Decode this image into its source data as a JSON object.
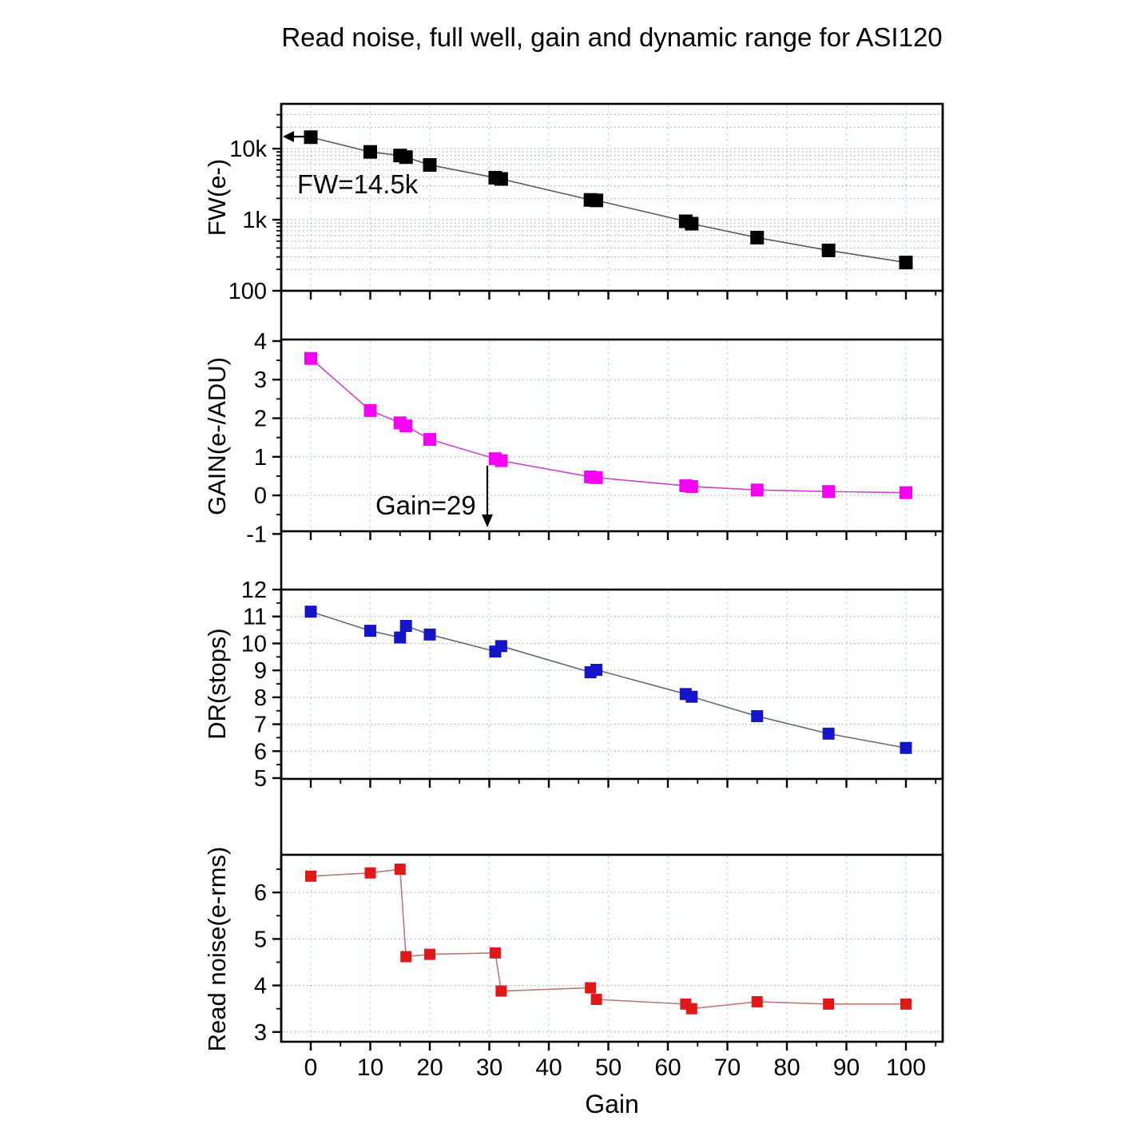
{
  "title": "Read noise, full well, gain and dynamic range for ASI120",
  "xlabel": "Gain",
  "style": {
    "background": "#ffffff",
    "axis_color": "#000000",
    "vertical_grid_color": "#a6dcdc",
    "horizontal_grid_color": "#9a9a9a"
  },
  "xaxis": {
    "label": "Gain",
    "tick_values": [
      0,
      10,
      20,
      30,
      40,
      50,
      60,
      70,
      80,
      90,
      100
    ],
    "tick_labels": [
      "0",
      "10",
      "20",
      "30",
      "40",
      "50",
      "60",
      "70",
      "80",
      "90",
      "100"
    ],
    "minor_tick_values": [
      5,
      15,
      25,
      35,
      45,
      55,
      65,
      75,
      85,
      95,
      105
    ]
  },
  "chart_data": [
    {
      "type": "line",
      "name": "fw",
      "ylabel": "FW(e-)",
      "yscale": "log",
      "ylim": [
        100,
        42700
      ],
      "annotation": "FW=14.5k",
      "color": "#000000",
      "line_color": "#5a5a5a",
      "marker": "square",
      "marker_size": 17,
      "x": [
        0,
        10,
        15,
        16,
        20,
        31,
        32,
        47,
        48,
        63,
        64,
        75,
        87,
        100
      ],
      "y": [
        14500,
        9000,
        8000,
        7600,
        5900,
        3900,
        3750,
        1900,
        1870,
        950,
        880,
        560,
        370,
        250
      ],
      "yticks": [
        {
          "v": 10000,
          "label": "10k"
        },
        {
          "v": 1000,
          "label": "1k"
        },
        {
          "v": 100,
          "label": "100"
        }
      ],
      "yticks_minor": [
        200,
        300,
        400,
        500,
        600,
        700,
        800,
        900,
        2000,
        3000,
        4000,
        5000,
        6000,
        7000,
        8000,
        9000,
        20000,
        30000
      ],
      "ygrid": [
        200,
        300,
        400,
        500,
        600,
        700,
        800,
        900,
        1000,
        2000,
        3000,
        4000,
        5000,
        6000,
        7000,
        8000,
        9000,
        10000,
        20000,
        30000
      ]
    },
    {
      "type": "line",
      "name": "gain",
      "ylabel": "GAIN(e-/ADU)",
      "yscale": "linear",
      "ylim": [
        -0.93,
        4.04
      ],
      "annotation": "Gain=29",
      "color": "#f500f5",
      "line_color": "#cc44cc",
      "marker": "square",
      "marker_size": 16,
      "x": [
        0,
        10,
        15,
        16,
        20,
        31,
        32,
        47,
        48,
        63,
        64,
        75,
        87,
        100
      ],
      "y": [
        3.55,
        2.2,
        1.88,
        1.8,
        1.45,
        0.95,
        0.9,
        0.48,
        0.46,
        0.25,
        0.23,
        0.14,
        0.1,
        0.07
      ],
      "yticks": [
        {
          "v": 4,
          "label": "4"
        },
        {
          "v": 3,
          "label": "3"
        },
        {
          "v": 2,
          "label": "2"
        },
        {
          "v": 1,
          "label": "1"
        },
        {
          "v": 0,
          "label": "0"
        },
        {
          "v": -1,
          "label": "-1"
        }
      ],
      "yticks_minor": [
        -0.5,
        0.5,
        1.5,
        2.5,
        3.5
      ],
      "ygrid": [
        0,
        1,
        2,
        3
      ]
    },
    {
      "type": "line",
      "name": "dr",
      "ylabel": "DR(stops)",
      "yscale": "linear",
      "ylim": [
        4.97,
        12
      ],
      "annotation": "",
      "color": "#1414c8",
      "line_color": "#5f6b7a",
      "marker": "square",
      "marker_size": 15,
      "x": [
        0,
        10,
        15,
        16,
        20,
        31,
        32,
        47,
        48,
        63,
        64,
        75,
        87,
        100
      ],
      "y": [
        11.18,
        10.47,
        10.22,
        10.65,
        10.33,
        9.7,
        9.9,
        8.93,
        9.02,
        8.12,
        8.02,
        7.3,
        6.65,
        6.12
      ],
      "yticks": [
        {
          "v": 12,
          "label": "12"
        },
        {
          "v": 11,
          "label": "11"
        },
        {
          "v": 10,
          "label": "10"
        },
        {
          "v": 9,
          "label": "9"
        },
        {
          "v": 8,
          "label": "8"
        },
        {
          "v": 7,
          "label": "7"
        },
        {
          "v": 6,
          "label": "6"
        },
        {
          "v": 5,
          "label": "5"
        }
      ],
      "yticks_minor": [
        5.5,
        6.5,
        7.5,
        8.5,
        9.5,
        10.5,
        11.5
      ],
      "ygrid": [
        6,
        7,
        8,
        9,
        10,
        11
      ]
    },
    {
      "type": "line",
      "name": "read-noise",
      "ylabel": "Read noise(e-rms)",
      "yscale": "linear",
      "ylim": [
        2.79,
        6.81
      ],
      "annotation": "",
      "color": "#e01818",
      "line_color": "#bc7a72",
      "marker": "square",
      "marker_size": 14,
      "x": [
        0,
        10,
        15,
        16,
        20,
        31,
        32,
        47,
        48,
        63,
        64,
        75,
        87,
        100
      ],
      "y": [
        6.35,
        6.42,
        6.5,
        4.62,
        4.67,
        4.7,
        3.88,
        3.95,
        3.7,
        3.6,
        3.5,
        3.65,
        3.6,
        3.6
      ],
      "yticks": [
        {
          "v": 6,
          "label": "6"
        },
        {
          "v": 5,
          "label": "5"
        },
        {
          "v": 4,
          "label": "4"
        },
        {
          "v": 3,
          "label": "3"
        }
      ],
      "yticks_minor": [
        3.5,
        4.5,
        5.5,
        6.5
      ],
      "ygrid": [
        3,
        4,
        5,
        6
      ]
    }
  ]
}
